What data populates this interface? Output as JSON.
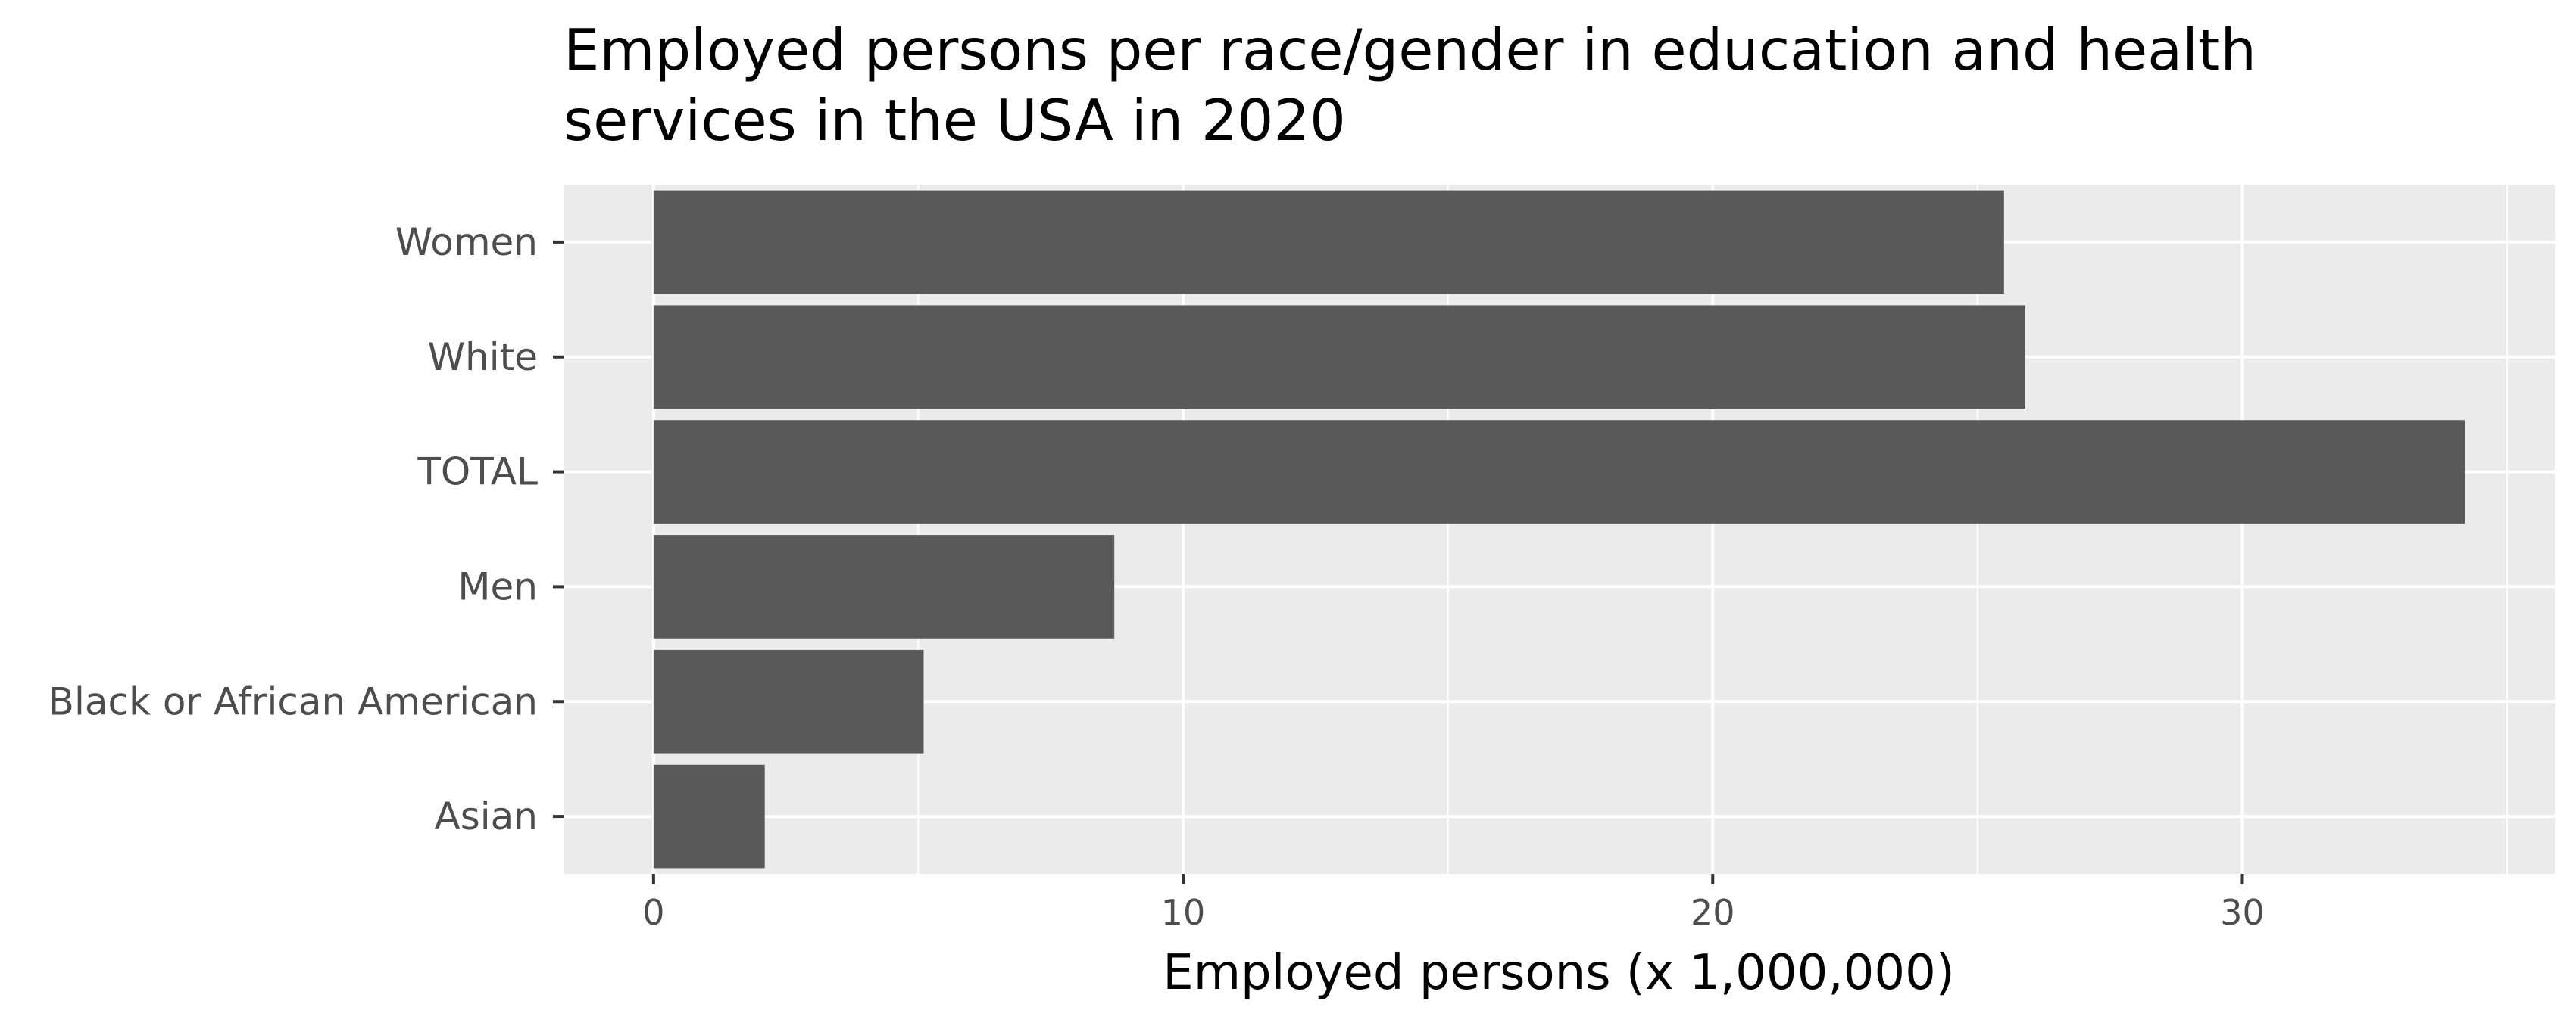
{
  "chart_data": {
    "type": "bar",
    "orientation": "horizontal",
    "title_lines": [
      "Employed persons per race/gender in education and health",
      "services in the USA in 2020"
    ],
    "xlabel": "Employed persons (x 1,000,000)",
    "ylabel": "",
    "categories": [
      "Women",
      "White",
      "TOTAL",
      "Men",
      "Black or African American",
      "Asian"
    ],
    "values": [
      25.5,
      25.9,
      34.2,
      8.7,
      5.1,
      2.1
    ],
    "xlim": [
      -1.7,
      35.9
    ],
    "xticks": [
      0,
      10,
      20,
      30
    ],
    "xtick_labels": [
      "0",
      "10",
      "20",
      "30"
    ],
    "grid": true,
    "legend": "none",
    "colors": {
      "bar": "#595959",
      "panel": "#ebebeb",
      "grid": "#ffffff",
      "label": "#4d4d4d",
      "title": "#000000"
    }
  }
}
